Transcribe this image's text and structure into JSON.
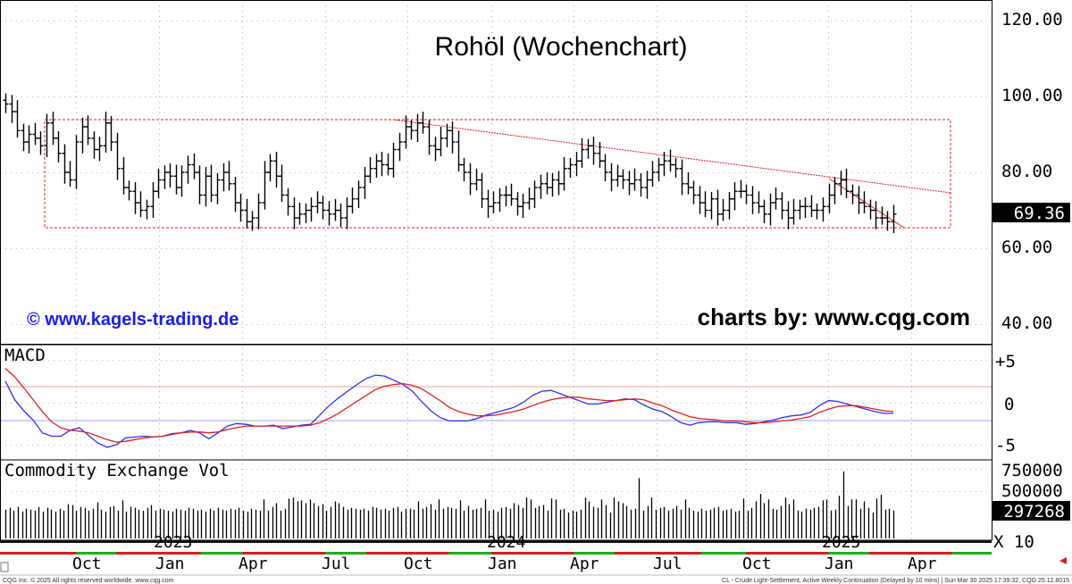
{
  "chart_title": "Rohöl (Wochenchart)",
  "brand_left": "© www.kagels-trading.de",
  "brand_right": "charts by: www.cqg.com",
  "footer_left": "CQG Inc. © 2025 All rights reserved worldwide. www.cqg.com",
  "footer_right": "CL - Crude Light-Settlement, Active Weekly Continuation (Delayed by 10 mins) | Sun Mar 30 2025 17:39:32, CQG 25.12.8015",
  "colors": {
    "macd": "#3030ff",
    "signal": "#e02020",
    "annotation": "#e02020",
    "badge_bg": "#000000",
    "month_bar": "#cc2222",
    "quarter_bar": "#22aa22"
  },
  "chart_data": [
    {
      "type": "ohlc",
      "panel": "price",
      "ylim": [
        30,
        125
      ],
      "yticks": [
        "120.00",
        "100.00",
        "80.00",
        "60.00",
        "40.00"
      ],
      "last_price_label": "69.36",
      "x_month_labels": [
        "Oct",
        "Jan",
        "Apr",
        "Jul",
        "Oct",
        "Jan",
        "Apr",
        "Jul",
        "Oct",
        "Jan",
        "Apr"
      ],
      "x_year_labels": [
        "2023",
        "2024",
        "2025"
      ],
      "weekly_close": [
        98,
        96,
        91,
        88,
        90,
        89,
        87,
        93,
        89,
        85,
        80,
        78,
        88,
        92,
        89,
        86,
        87,
        93,
        88,
        81,
        76,
        75,
        72,
        70,
        71,
        75,
        78,
        80,
        79,
        76,
        80,
        82,
        80,
        74,
        79,
        74,
        78,
        80,
        77,
        72,
        70,
        67,
        68,
        72,
        80,
        83,
        79,
        74,
        71,
        68,
        69,
        70,
        71,
        72,
        70,
        69,
        70,
        68,
        71,
        73,
        76,
        79,
        81,
        83,
        82,
        81,
        86,
        88,
        92,
        91,
        93,
        92,
        87,
        86,
        89,
        91,
        88,
        82,
        80,
        77,
        78,
        73,
        71,
        72,
        74,
        74,
        73,
        71,
        72,
        73,
        76,
        77,
        76,
        78,
        77,
        81,
        82,
        83,
        86,
        87,
        85,
        83,
        80,
        78,
        79,
        78,
        77,
        78,
        76,
        78,
        80,
        82,
        83,
        82,
        81,
        77,
        76,
        74,
        72,
        70,
        73,
        69,
        70,
        73,
        75,
        75,
        74,
        72,
        71,
        69,
        72,
        73,
        70,
        68,
        70,
        71,
        71,
        70,
        70,
        71,
        74,
        77,
        78,
        75,
        74,
        72,
        71,
        70,
        68,
        68,
        67,
        69
      ],
      "annotations": {
        "box": [
          66,
          94
        ],
        "trendline_main": [
          94,
          75
        ],
        "trendline_short": [
          79,
          66
        ]
      }
    },
    {
      "type": "line",
      "panel": "macd",
      "name": "MACD",
      "ylim": [
        -7,
        6.5
      ],
      "yticks": [
        "+5",
        "0",
        "-5"
      ],
      "reference_lines": [
        2,
        -2
      ],
      "series": [
        {
          "values": [
            2.5,
            0.3,
            -1.0,
            -2.1,
            -3.6,
            -4.0,
            -4.0,
            -3.3,
            -3.0,
            -3.9,
            -4.8,
            -5.3,
            -5.0,
            -4.2,
            -4.1,
            -4.0,
            -4.1,
            -4.0,
            -3.7,
            -3.6,
            -3.3,
            -3.6,
            -4.3,
            -3.6,
            -2.8,
            -2.5,
            -2.6,
            -2.8,
            -2.8,
            -2.7,
            -3.1,
            -2.9,
            -2.7,
            -2.6,
            -1.5,
            -0.4,
            0.5,
            1.3,
            2.1,
            2.8,
            3.2,
            3.1,
            2.6,
            2.1,
            1.3,
            0.1,
            -1.0,
            -1.8,
            -2.2,
            -2.2,
            -2.2,
            -1.9,
            -1.5,
            -1.2,
            -0.9,
            -0.6,
            0.0,
            0.8,
            1.3,
            1.4,
            1.0,
            0.6,
            0.2,
            -0.2,
            -0.2,
            0.0,
            0.2,
            0.4,
            0.3,
            -0.3,
            -0.8,
            -1.1,
            -1.7,
            -2.4,
            -2.7,
            -2.4,
            -2.3,
            -2.3,
            -2.4,
            -2.4,
            -2.6,
            -2.5,
            -2.3,
            -2.1,
            -1.8,
            -1.6,
            -1.5,
            -1.2,
            -0.4,
            0.2,
            0.1,
            -0.2,
            -0.5,
            -0.8,
            -1.1,
            -1.3,
            -1.3
          ]
        },
        {
          "values": [
            4.0,
            3.0,
            1.7,
            0.3,
            -1.1,
            -2.3,
            -3.0,
            -3.3,
            -3.4,
            -3.6,
            -4.0,
            -4.4,
            -4.7,
            -4.6,
            -4.4,
            -4.2,
            -4.1,
            -4.0,
            -3.8,
            -3.6,
            -3.5,
            -3.5,
            -3.6,
            -3.5,
            -3.2,
            -3.0,
            -2.8,
            -2.8,
            -2.8,
            -2.8,
            -2.8,
            -2.8,
            -2.8,
            -2.7,
            -2.4,
            -1.9,
            -1.3,
            -0.6,
            0.1,
            0.8,
            1.5,
            1.9,
            2.1,
            2.2,
            2.0,
            1.6,
            0.9,
            0.2,
            -0.6,
            -1.1,
            -1.4,
            -1.6,
            -1.6,
            -1.5,
            -1.3,
            -1.1,
            -0.8,
            -0.4,
            0.0,
            0.3,
            0.5,
            0.6,
            0.6,
            0.4,
            0.3,
            0.2,
            0.2,
            0.3,
            0.4,
            0.3,
            -0.1,
            -0.4,
            -0.9,
            -1.3,
            -1.7,
            -1.9,
            -2.0,
            -2.1,
            -2.2,
            -2.2,
            -2.3,
            -2.4,
            -2.4,
            -2.3,
            -2.2,
            -2.1,
            -1.9,
            -1.7,
            -1.2,
            -0.8,
            -0.5,
            -0.4,
            -0.4,
            -0.6,
            -0.8,
            -1.0,
            -1.1
          ]
        }
      ]
    },
    {
      "type": "bar",
      "panel": "volume",
      "name": "Commodity Exchange Vol",
      "ylim": [
        0,
        800000
      ],
      "yticks": [
        "750000",
        "500000"
      ],
      "last_volume_label": "297268",
      "multiplier_label": "X 10",
      "values": [
        310000,
        330000,
        300000,
        340000,
        290000,
        320000,
        310000,
        300000,
        340000,
        290000,
        330000,
        310000,
        290000,
        320000,
        300000,
        370000,
        360000,
        300000,
        340000,
        330000,
        300000,
        320000,
        390000,
        310000,
        290000,
        340000,
        350000,
        300000,
        410000,
        290000,
        340000,
        330000,
        310000,
        300000,
        330000,
        360000,
        300000,
        320000,
        310000,
        300000,
        290000,
        320000,
        310000,
        300000,
        330000,
        320000,
        300000,
        310000,
        290000,
        320000,
        300000,
        330000,
        310000,
        300000,
        320000,
        310000,
        330000,
        300000,
        290000,
        320000,
        310000,
        300000,
        420000,
        300000,
        340000,
        380000,
        300000,
        320000,
        430000,
        440000,
        400000,
        410000,
        380000,
        420000,
        380000,
        350000,
        370000,
        300000,
        340000,
        400000,
        380000,
        340000,
        310000,
        330000,
        320000,
        310000,
        320000,
        300000,
        340000,
        330000,
        310000,
        320000,
        300000,
        330000,
        340000,
        290000,
        320000,
        320000,
        310000,
        400000,
        320000,
        340000,
        370000,
        310000,
        420000,
        320000,
        340000,
        330000,
        320000,
        410000,
        300000,
        350000,
        310000,
        320000,
        330000,
        420000,
        300000,
        310000,
        290000,
        330000,
        340000,
        320000,
        380000,
        360000,
        330000,
        440000,
        420000,
        330000,
        350000,
        360000,
        300000,
        430000,
        420000,
        310000,
        320000,
        280000,
        300000,
        290000,
        310000,
        440000,
        400000,
        340000,
        330000,
        420000,
        360000,
        280000,
        440000,
        400000,
        380000,
        350000,
        310000,
        320000,
        650000,
        300000,
        350000,
        440000,
        310000,
        330000,
        340000,
        300000,
        320000,
        350000,
        310000,
        420000,
        330000,
        300000,
        290000,
        320000,
        300000,
        310000,
        330000,
        340000,
        300000,
        310000,
        320000,
        290000,
        300000,
        430000,
        300000,
        330000,
        400000,
        480000,
        380000,
        420000,
        320000,
        310000,
        350000,
        440000,
        370000,
        420000,
        300000,
        290000,
        320000,
        310000,
        330000,
        340000,
        410000,
        420000,
        300000,
        310000,
        460000,
        720000,
        350000,
        420000,
        420000,
        320000,
        400000,
        330000,
        280000,
        430000,
        470000,
        310000,
        320000,
        300000
      ]
    }
  ]
}
